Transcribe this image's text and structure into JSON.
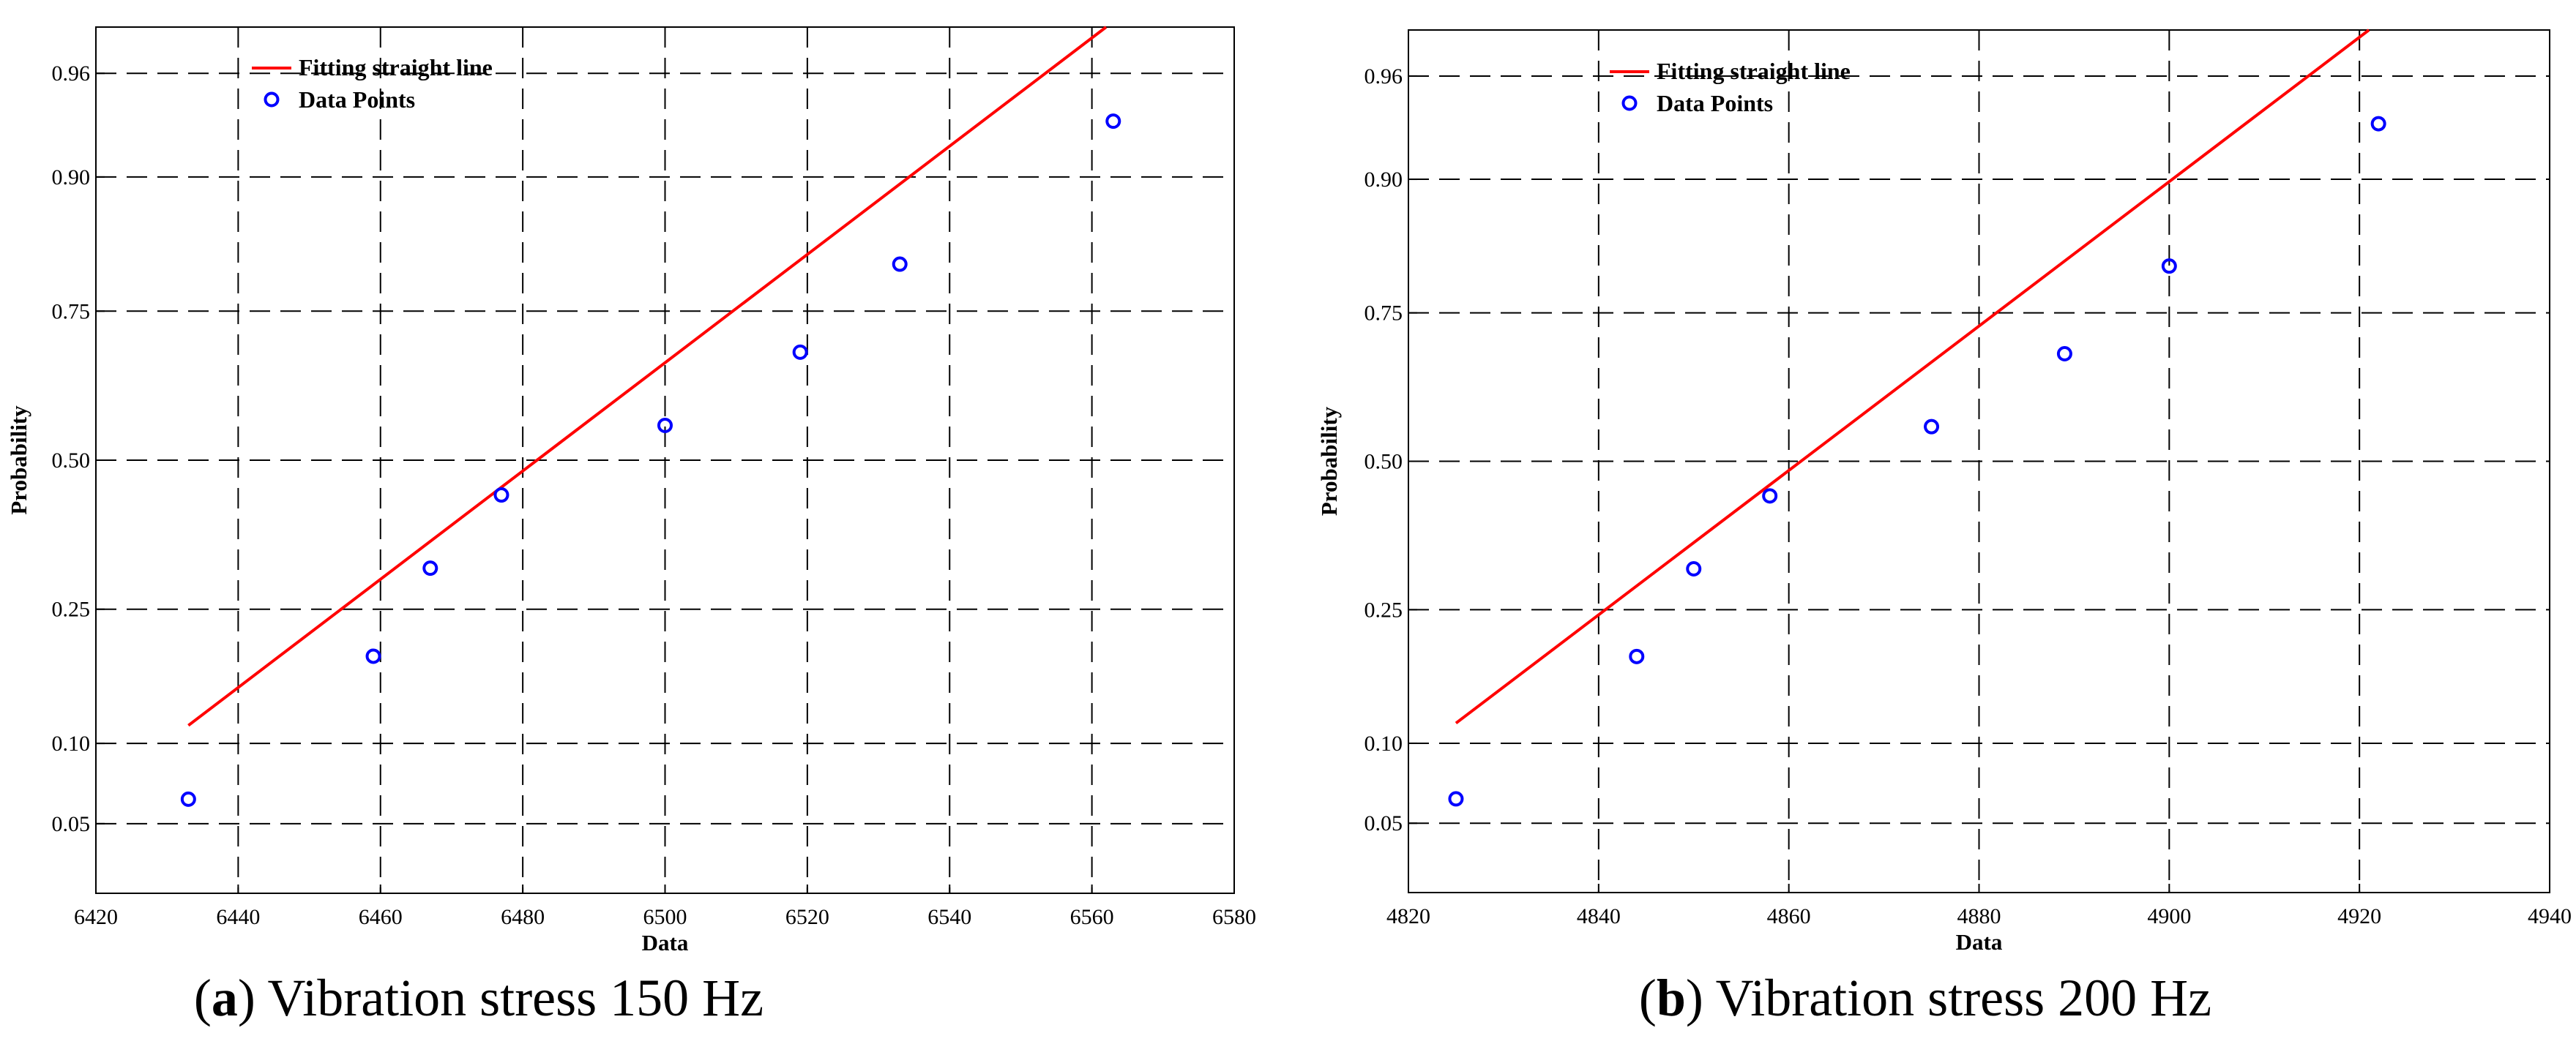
{
  "colors": {
    "fit_line": "#ff0000",
    "data_points": "#0000ff",
    "grid": "#000000"
  },
  "chart_data": [
    {
      "type": "scatter",
      "panel": "a",
      "caption_label": "a",
      "caption_text": "Vibration stress 150 Hz",
      "xlabel": "Data",
      "ylabel": "Probability",
      "scale_y": "normal-probability",
      "xlim": [
        6420,
        6580
      ],
      "xticks": [
        6420,
        6440,
        6460,
        6480,
        6500,
        6520,
        6540,
        6560,
        6580
      ],
      "ylim": [
        0.025,
        0.975
      ],
      "yticks": [
        0.05,
        0.1,
        0.25,
        0.5,
        0.75,
        0.9,
        0.96
      ],
      "ytick_labels": [
        "0.05",
        "0.10",
        "0.25",
        "0.50",
        "0.75",
        "0.90",
        "0.96"
      ],
      "legend_position": "top-left",
      "series": [
        {
          "name": "Fitting straight line",
          "kind": "line",
          "x": [
            6433,
            6562
          ],
          "y": [
            0.115,
            0.975
          ]
        },
        {
          "name": "Data Points",
          "kind": "markers",
          "x": [
            6433,
            6459,
            6467,
            6477,
            6500,
            6519,
            6533,
            6563
          ],
          "y": [
            0.0625,
            0.1875,
            0.3125,
            0.4375,
            0.5625,
            0.6875,
            0.8125,
            0.9375
          ]
        }
      ]
    },
    {
      "type": "scatter",
      "panel": "b",
      "caption_label": "b",
      "caption_text": "Vibration stress 200 Hz",
      "xlabel": "Data",
      "ylabel": "Probability",
      "scale_y": "normal-probability",
      "xlim": [
        4820,
        4940
      ],
      "xticks": [
        4820,
        4840,
        4860,
        4880,
        4900,
        4920,
        4940
      ],
      "ylim": [
        0.025,
        0.975
      ],
      "yticks": [
        0.05,
        0.1,
        0.25,
        0.5,
        0.75,
        0.9,
        0.96
      ],
      "ytick_labels": [
        "0.05",
        "0.10",
        "0.25",
        "0.50",
        "0.75",
        "0.90",
        "0.96"
      ],
      "legend_position": "top-left",
      "series": [
        {
          "name": "Fitting straight line",
          "kind": "line",
          "x": [
            4825,
            4921
          ],
          "y": [
            0.117,
            0.975
          ]
        },
        {
          "name": "Data Points",
          "kind": "markers",
          "x": [
            4825,
            4844,
            4850,
            4858,
            4875,
            4889,
            4900,
            4922
          ],
          "y": [
            0.0625,
            0.1875,
            0.3125,
            0.4375,
            0.5625,
            0.6875,
            0.8125,
            0.9375
          ]
        }
      ]
    }
  ]
}
